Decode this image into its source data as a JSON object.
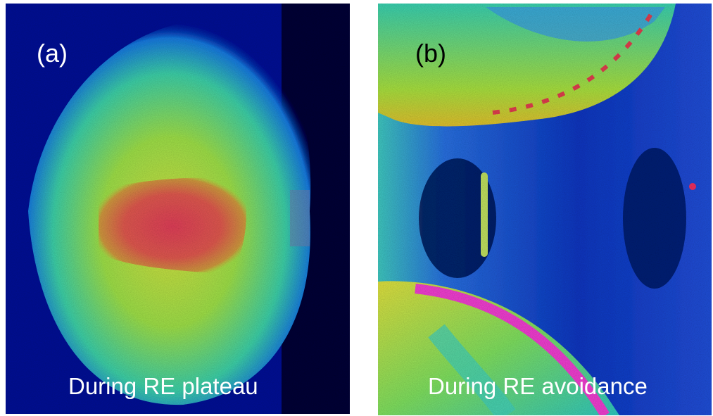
{
  "panels": [
    {
      "label": "(a)",
      "caption": "During RE plateau"
    },
    {
      "label": "(b)",
      "caption": "During RE avoidance"
    }
  ]
}
